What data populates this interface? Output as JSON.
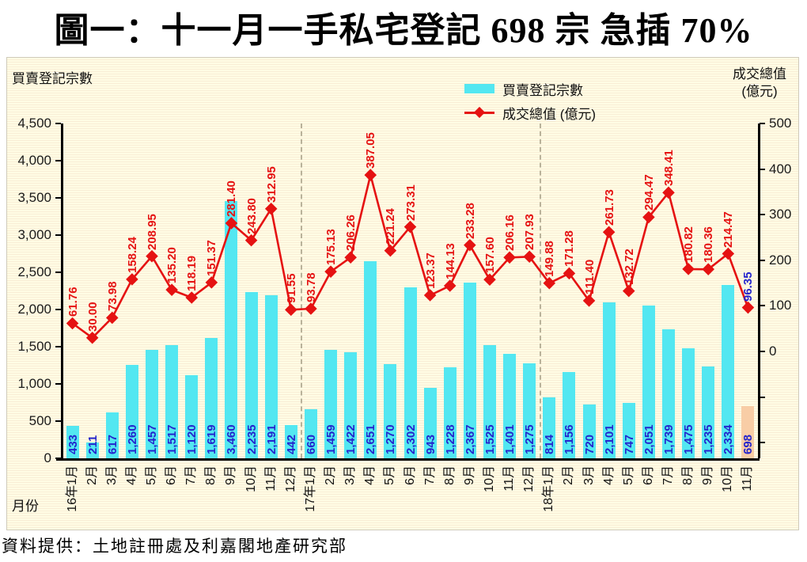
{
  "title": "圖一：十一月一手私宅登記 698 宗  急插 70%",
  "source": "資料提供：土地註冊處及利嘉閣地產研究部",
  "left_axis": {
    "title": "買賣登記宗數",
    "tick_labels": [
      "4,500",
      "4,000",
      "3,500",
      "3,000",
      "2,500",
      "2,000",
      "1,500",
      "1,000",
      "500",
      "0"
    ]
  },
  "right_axis": {
    "title_line1": "成交總值",
    "title_line2": "(億元)",
    "tick_labels": [
      "500",
      "400",
      "300",
      "200",
      "100",
      "0"
    ]
  },
  "x_axis_label": "月份",
  "legend": {
    "items": [
      {
        "label": "買賣登記宗數",
        "marker": "bar"
      },
      {
        "label": "成交總值 (億元)",
        "marker": "line"
      }
    ]
  },
  "colors": {
    "bar": "#53e7f1",
    "bar_highlight": "#f8cda6",
    "line": "#e51212",
    "bar_label": "#2424cd",
    "line_label": "#e51212",
    "last_line_label": "#2424cd",
    "axis": "#000000",
    "separator": "#b9b29a"
  },
  "chart_data": {
    "type": "bar+line",
    "title": "圖一：十一月一手私宅登記 698 宗  急插 70%",
    "categories": [
      "16年1月",
      "2月",
      "3月",
      "4月",
      "5月",
      "6月",
      "7月",
      "8月",
      "9月",
      "10月",
      "11月",
      "12月",
      "17年1月",
      "2月",
      "3月",
      "4月",
      "5月",
      "6月",
      "7月",
      "8月",
      "9月",
      "10月",
      "11月",
      "12月",
      "18年1月",
      "2月",
      "3月",
      "4月",
      "5月",
      "6月",
      "7月",
      "8月",
      "9月",
      "10月",
      "11月"
    ],
    "series": [
      {
        "name": "買賣登記宗數",
        "type": "bar",
        "axis": "left",
        "values": [
          433,
          211,
          617,
          1260,
          1457,
          1517,
          1120,
          1619,
          3460,
          2235,
          2191,
          442,
          660,
          1459,
          1422,
          2651,
          1270,
          2302,
          943,
          1228,
          2367,
          1525,
          1401,
          1275,
          814,
          1156,
          720,
          2101,
          747,
          2051,
          1739,
          1475,
          1235,
          2334,
          698
        ],
        "labels": [
          "433",
          "211",
          "617",
          "1,260",
          "1,457",
          "1,517",
          "1,120",
          "1,619",
          "3,460",
          "2,235",
          "2,191",
          "442",
          "660",
          "1,459",
          "1,422",
          "2,651",
          "1,270",
          "2,302",
          "943",
          "1,228",
          "2,367",
          "1,525",
          "1,401",
          "1,275",
          "814",
          "1,156",
          "720",
          "2,101",
          "747",
          "2,051",
          "1,739",
          "1,475",
          "1,235",
          "2,334",
          "698"
        ]
      },
      {
        "name": "成交總值 (億元)",
        "type": "line",
        "axis": "right",
        "values": [
          61.76,
          30.0,
          73.98,
          158.24,
          208.95,
          135.2,
          118.19,
          151.37,
          281.4,
          243.8,
          312.95,
          91.55,
          93.78,
          175.13,
          206.26,
          387.05,
          221.24,
          273.31,
          123.37,
          144.13,
          233.28,
          157.6,
          206.16,
          207.93,
          149.88,
          171.28,
          111.4,
          261.73,
          132.72,
          294.47,
          348.41,
          180.82,
          180.36,
          214.47,
          96.35
        ],
        "labels": [
          "61.76",
          "30.00",
          "73.98",
          "158.24",
          "208.95",
          "135.20",
          "118.19",
          "151.37",
          "281.40",
          "243.80",
          "312.95",
          "91.55",
          "93.78",
          "175.13",
          "206.26",
          "387.05",
          "221.24",
          "273.31",
          "123.37",
          "144.13",
          "233.28",
          "157.60",
          "206.16",
          "207.93",
          "149.88",
          "171.28",
          "111.40",
          "261.73",
          "132.72",
          "294.47",
          "348.41",
          "180.82",
          "180.36",
          "214.47",
          "96.35"
        ]
      }
    ],
    "left_ylim": [
      0,
      4500
    ],
    "left_tick_step": 500,
    "right_ylim_labeled": [
      0,
      500
    ],
    "right_tick_step": 100,
    "right_unlabeled_ticks_below_zero": 2,
    "highlight_last_bar": true,
    "year_separators_after_index": [
      11,
      23
    ],
    "grid": "off",
    "legend_position": "top-center-inside"
  }
}
